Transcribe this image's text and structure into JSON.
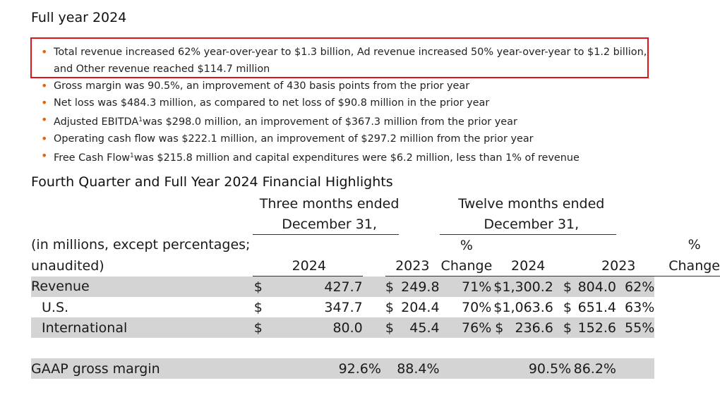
{
  "section_title": "Full year 2024",
  "highlighted_bullet_index": 0,
  "bullets": [
    {
      "text": "Total revenue increased 62% year-over-year to $1.3 billion, Ad revenue increased 50% year-over-year to $1.2 billion, and Other revenue reached $114.7 million"
    },
    {
      "text": "Gross margin was 90.5%, an improvement of 430 basis points from the prior year"
    },
    {
      "text": "Net loss was $484.3 million, as compared to net loss of $90.8 million in the prior year"
    },
    {
      "pre": "Adjusted EBITDA",
      "sup": "1",
      "post": "was $298.0 million, an improvement of $367.3 million from the prior year"
    },
    {
      "text": "Operating cash flow was $222.1 million, an improvement of $297.2 million from the prior year"
    },
    {
      "pre": "Free Cash Flow",
      "sup": "1",
      "post": "was $215.8 million and capital expenditures were $6.2 million, less than 1% of revenue"
    }
  ],
  "table": {
    "title": "Fourth Quarter and Full Year 2024 Financial Highlights",
    "group1_line1": "Three months ended",
    "group1_line2": "December 31,",
    "group2_line1": "Twelve months ended",
    "group2_line2": "December 31,",
    "caption_line1": "(in millions, except percentages;",
    "caption_line2": "unaudited)",
    "year_2024": "2024",
    "year_2023": "2023",
    "pct_line1": "%",
    "pct_line2": "Change",
    "rows": [
      {
        "label": "Revenue",
        "q_2024": "427.7",
        "q_2023": "249.8",
        "q_change": "71%",
        "y_2024": "$1,300.2",
        "y_2023": "804.0",
        "y_change": "62%"
      },
      {
        "label": "U.S.",
        "q_2024": "347.7",
        "q_2023": "204.4",
        "q_change": "70%",
        "y_2024": "$1,063.6",
        "y_2023": "651.4",
        "y_change": "63%"
      },
      {
        "label": "International",
        "q_2024": "80.0",
        "q_2023": "45.4",
        "q_change": "76%",
        "y_2024": "236.6",
        "y_2023": "152.6",
        "y_change": "55%"
      }
    ],
    "gross_margin": {
      "label": "GAAP gross margin",
      "q_2024": "92.6%",
      "q_2023": "88.4%",
      "y_2024": "90.5%",
      "y_2023": "86.2%"
    },
    "currency": "$"
  }
}
